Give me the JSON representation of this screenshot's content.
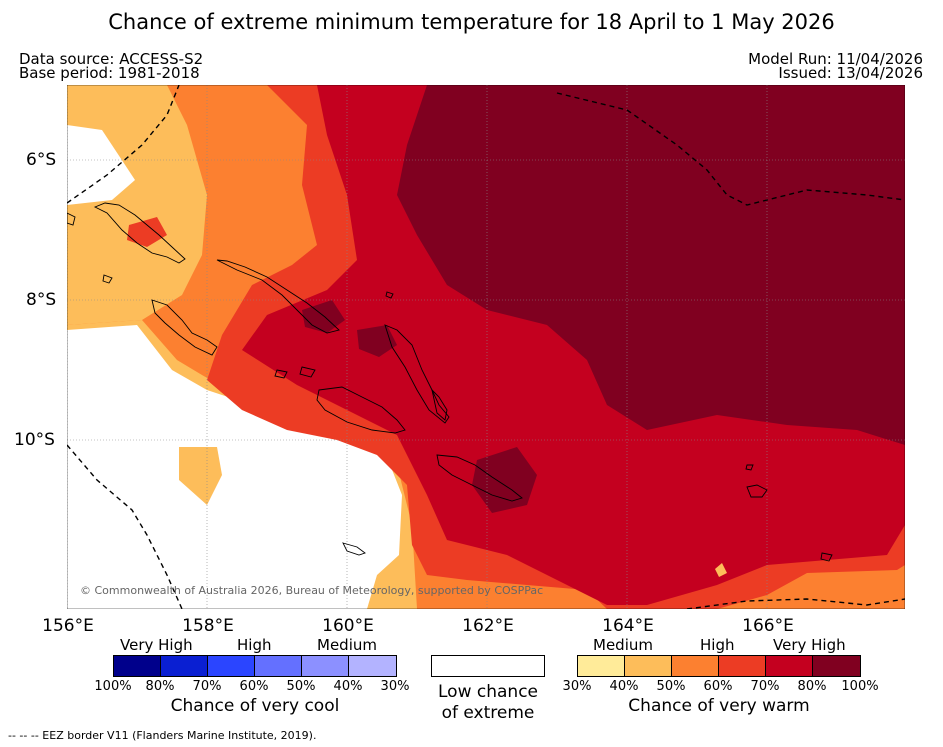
{
  "title": "Chance of extreme minimum temperature for 18 April to 1 May 2026",
  "header": {
    "data_source": "Data source: ACCESS-S2",
    "base_period": "Base period: 1981-2018",
    "model_run": "Model Run: 11/04/2026",
    "issued": "Issued: 13/04/2026"
  },
  "map": {
    "region": "Solomon Islands",
    "copyright": "© Commonwealth of Australia 2026, Bureau of Meteorology, supported by COSPPac",
    "lat_labels": [
      "6°S",
      "8°S",
      "10°S"
    ],
    "lon_labels": [
      "156°E",
      "158°E",
      "160°E",
      "162°E",
      "164°E",
      "166°E"
    ]
  },
  "legend_cool": {
    "categories": [
      "Very High",
      "High",
      "Medium"
    ],
    "ticks": [
      "100%",
      "80%",
      "70%",
      "60%",
      "50%",
      "40%",
      "30%"
    ],
    "colors": [
      "#00008b",
      "#0a1fd2",
      "#2b45ff",
      "#6470ff",
      "#8c90ff",
      "#b3b3ff"
    ],
    "caption": "Chance of very cool"
  },
  "legend_neutral": {
    "caption_line1": "Low chance",
    "caption_line2": "of extreme",
    "color": "#ffffff"
  },
  "legend_warm": {
    "categories": [
      "Medium",
      "High",
      "Very High"
    ],
    "ticks": [
      "30%",
      "40%",
      "50%",
      "60%",
      "70%",
      "80%",
      "100%"
    ],
    "colors": [
      "#ffeb99",
      "#fdbd5a",
      "#fc8030",
      "#ec3c24",
      "#c4001f",
      "#800020"
    ],
    "caption": "Chance of very warm"
  },
  "footnote": "--  --  -- EEZ border V11 (Flanders Marine Institute, 2019)."
}
